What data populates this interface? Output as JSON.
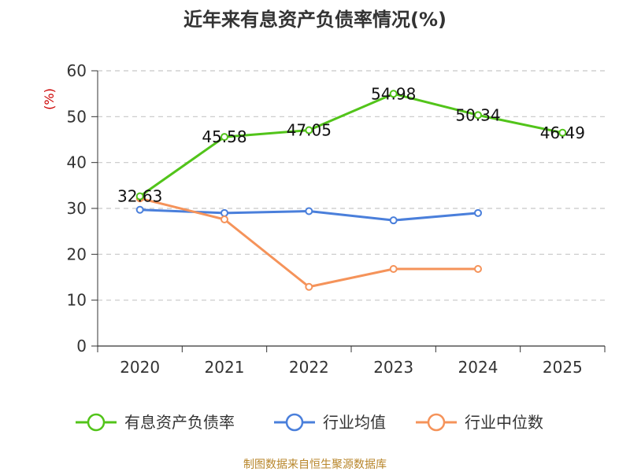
{
  "chart_data": {
    "type": "line",
    "title": "近年来有息资产负债率情况(%)",
    "unit_label": "(%)",
    "categories": [
      "2020",
      "2021",
      "2022",
      "2023",
      "2024",
      "2025"
    ],
    "y_ticks": [
      "0",
      "10",
      "20",
      "30",
      "40",
      "50",
      "60"
    ],
    "ylim": [
      0,
      60
    ],
    "grid": true,
    "legend_position": "bottom",
    "series": [
      {
        "name": "有息资产负债率",
        "color": "#52c41a",
        "values": [
          32.63,
          45.58,
          47.05,
          54.98,
          50.34,
          46.49
        ],
        "labels": [
          "32.63",
          "45.58",
          "47.05",
          "54.98",
          "50.34",
          "46.49"
        ]
      },
      {
        "name": "行业均值",
        "color": "#4a7fdb",
        "values": [
          29.7,
          29.0,
          29.4,
          27.4,
          29.0,
          null
        ]
      },
      {
        "name": "行业中位数",
        "color": "#f5935a",
        "values": [
          32.2,
          27.6,
          12.9,
          16.8,
          16.8,
          null
        ]
      }
    ]
  },
  "source": "制图数据来自恒生聚源数据库"
}
